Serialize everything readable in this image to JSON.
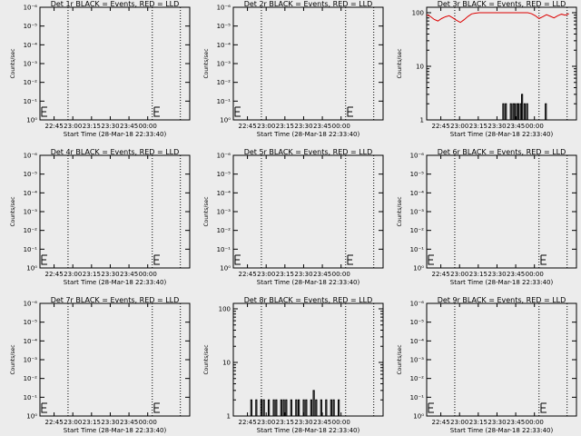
{
  "figure": {
    "background": "#ececec",
    "axis_color": "#000000",
    "events_color": "#000000",
    "lld_color": "#dd0000"
  },
  "chart_data": [
    {
      "type": "line",
      "title": "Det 1r BLACK = Events, RED = LLD",
      "xlabel": "Start Time (28-Mar-18 22:33:40)",
      "ylabel": "Counts/sec",
      "x_tick_labels": [
        "22:45",
        "23:00",
        "23:15",
        "23:30",
        "23:45",
        "00:00"
      ],
      "y_tick_labels": [
        "10⁰",
        "10⁻¹",
        "10⁻²",
        "10⁻³",
        "10⁻⁴",
        "10⁻⁵",
        "10⁻⁶"
      ],
      "yscale": "log",
      "dotted_lines_minutes": [
        22.5,
        90,
        112.5
      ],
      "series": [
        {
          "name": "Events",
          "color": "#000000",
          "x": [],
          "y": []
        },
        {
          "name": "LLD",
          "color": "#dd0000",
          "x": [],
          "y": []
        }
      ]
    },
    {
      "type": "line",
      "title": "Det 2r BLACK = Events, RED = LLD",
      "xlabel": "Start Time (28-Mar-18 22:33:40)",
      "ylabel": "Counts/sec",
      "x_tick_labels": [
        "22:45",
        "23:00",
        "23:15",
        "23:30",
        "23:45",
        "00:00"
      ],
      "y_tick_labels": [
        "10⁰",
        "10⁻¹",
        "10⁻²",
        "10⁻³",
        "10⁻⁴",
        "10⁻⁵",
        "10⁻⁶"
      ],
      "yscale": "log",
      "dotted_lines_minutes": [
        22.5,
        90,
        112.5
      ],
      "series": [
        {
          "name": "Events",
          "color": "#000000",
          "x": [],
          "y": []
        },
        {
          "name": "LLD",
          "color": "#dd0000",
          "x": [],
          "y": []
        }
      ]
    },
    {
      "type": "line",
      "title": "Det 3r BLACK = Events, RED = LLD",
      "xlabel": "Start Time (28-Mar-18 22:33:40)",
      "ylabel": "Counts/sec",
      "x_tick_labels": [
        "22:45",
        "23:00",
        "23:15",
        "23:30",
        "23:45",
        "00:00"
      ],
      "y_tick_labels": [
        "1",
        "10",
        "100"
      ],
      "yscale": "log",
      "ylim": [
        1,
        100
      ],
      "dotted_lines_minutes": [
        22.5,
        90,
        112.5
      ],
      "series": [
        {
          "name": "Events",
          "color": "#000000",
          "x": [
            60,
            61,
            62,
            63,
            66,
            67,
            68,
            69,
            70,
            71,
            72,
            73,
            75,
            76,
            77,
            78,
            79,
            80,
            81,
            82,
            95
          ],
          "y": [
            1,
            2,
            1,
            2,
            1,
            2,
            1,
            2,
            2,
            1,
            2,
            2,
            2,
            3,
            1,
            2,
            1,
            2,
            1,
            1,
            2
          ]
        },
        {
          "name": "LLD",
          "color": "#dd0000",
          "x": [
            0,
            3,
            6,
            9,
            12,
            15,
            18,
            21,
            24,
            27,
            30,
            33,
            36,
            39,
            42,
            45,
            48,
            51,
            54,
            57,
            60,
            63,
            66,
            69,
            72,
            75,
            78,
            81,
            84,
            87,
            90,
            93,
            96,
            99,
            102,
            105,
            108,
            111,
            114
          ],
          "y": [
            92,
            85,
            75,
            70,
            78,
            84,
            88,
            80,
            72,
            66,
            74,
            85,
            95,
            98,
            100,
            100,
            100,
            100,
            100,
            100,
            100,
            100,
            100,
            100,
            100,
            100,
            100,
            100,
            96,
            88,
            78,
            84,
            92,
            86,
            80,
            88,
            94,
            90,
            96
          ]
        }
      ]
    },
    {
      "type": "line",
      "title": "Det 4r BLACK = Events, RED = LLD",
      "xlabel": "Start Time (28-Mar-18 22:33:40)",
      "ylabel": "Counts/sec",
      "x_tick_labels": [
        "22:45",
        "23:00",
        "23:15",
        "23:30",
        "23:45",
        "00:00"
      ],
      "y_tick_labels": [
        "10⁰",
        "10⁻¹",
        "10⁻²",
        "10⁻³",
        "10⁻⁴",
        "10⁻⁵",
        "10⁻⁶"
      ],
      "yscale": "log",
      "dotted_lines_minutes": [
        22.5,
        90,
        112.5
      ],
      "series": [
        {
          "name": "Events",
          "color": "#000000",
          "x": [],
          "y": []
        },
        {
          "name": "LLD",
          "color": "#dd0000",
          "x": [],
          "y": []
        }
      ]
    },
    {
      "type": "line",
      "title": "Det 5r BLACK = Events, RED = LLD",
      "xlabel": "Start Time (28-Mar-18 22:33:40)",
      "ylabel": "Counts/sec",
      "x_tick_labels": [
        "22:45",
        "23:00",
        "23:15",
        "23:30",
        "23:45",
        "00:00"
      ],
      "y_tick_labels": [
        "10⁰",
        "10⁻¹",
        "10⁻²",
        "10⁻³",
        "10⁻⁴",
        "10⁻⁵",
        "10⁻⁶"
      ],
      "yscale": "log",
      "dotted_lines_minutes": [
        22.5,
        90,
        112.5
      ],
      "series": [
        {
          "name": "Events",
          "color": "#000000",
          "x": [],
          "y": []
        },
        {
          "name": "LLD",
          "color": "#dd0000",
          "x": [],
          "y": []
        }
      ]
    },
    {
      "type": "line",
      "title": "Det 6r BLACK = Events, RED = LLD",
      "xlabel": "Start Time (28-Mar-18 22:33:40)",
      "ylabel": "Counts/sec",
      "x_tick_labels": [
        "22:45",
        "23:00",
        "23:15",
        "23:30",
        "23:45",
        "00:00"
      ],
      "y_tick_labels": [
        "10⁰",
        "10⁻¹",
        "10⁻²",
        "10⁻³",
        "10⁻⁴",
        "10⁻⁵",
        "10⁻⁶"
      ],
      "yscale": "log",
      "dotted_lines_minutes": [
        22.5,
        90,
        112.5
      ],
      "series": [
        {
          "name": "Events",
          "color": "#000000",
          "x": [],
          "y": []
        },
        {
          "name": "LLD",
          "color": "#dd0000",
          "x": [],
          "y": []
        }
      ]
    },
    {
      "type": "line",
      "title": "Det 7r BLACK = Events, RED = LLD",
      "xlabel": "Start Time (28-Mar-18 22:33:40)",
      "ylabel": "Counts/sec",
      "x_tick_labels": [
        "22:45",
        "23:00",
        "23:15",
        "23:30",
        "23:45",
        "00:00"
      ],
      "y_tick_labels": [
        "10⁰",
        "10⁻¹",
        "10⁻²",
        "10⁻³",
        "10⁻⁴",
        "10⁻⁵",
        "10⁻⁶"
      ],
      "yscale": "log",
      "dotted_lines_minutes": [
        22.5,
        90,
        112.5
      ],
      "series": [
        {
          "name": "Events",
          "color": "#000000",
          "x": [],
          "y": []
        },
        {
          "name": "LLD",
          "color": "#dd0000",
          "x": [],
          "y": []
        }
      ]
    },
    {
      "type": "line",
      "title": "Det 8r BLACK = Events, RED = LLD",
      "xlabel": "Start Time (28-Mar-18 22:33:40)",
      "ylabel": "Counts/sec",
      "x_tick_labels": [
        "22:45",
        "23:00",
        "23:15",
        "23:30",
        "23:45",
        "00:00"
      ],
      "y_tick_labels": [
        "1",
        "10",
        "100"
      ],
      "yscale": "log",
      "ylim": [
        1,
        100
      ],
      "dotted_lines_minutes": [
        22.5,
        90,
        112.5
      ],
      "series": [
        {
          "name": "Events",
          "color": "#000000",
          "x": [
            14,
            16,
            18,
            20,
            22,
            24,
            26,
            28,
            30,
            32,
            34,
            36,
            38,
            40,
            42,
            44,
            46,
            48,
            50,
            52,
            54,
            56,
            58,
            60,
            62,
            64,
            66,
            68,
            70,
            72,
            74,
            76,
            78,
            80,
            82,
            84,
            86
          ],
          "y": [
            2,
            1,
            2,
            1,
            2,
            2,
            1,
            2,
            1,
            2,
            2,
            1,
            2,
            2,
            2,
            1,
            2,
            1,
            2,
            2,
            1,
            2,
            2,
            1,
            2,
            3,
            2,
            1,
            2,
            1,
            2,
            1,
            2,
            2,
            1,
            2,
            1
          ]
        },
        {
          "name": "LLD",
          "color": "#dd0000",
          "x": [],
          "y": []
        }
      ]
    },
    {
      "type": "line",
      "title": "Det 9r BLACK = Events, RED = LLD",
      "xlabel": "Start Time (28-Mar-18 22:33:40)",
      "ylabel": "Counts/sec",
      "x_tick_labels": [
        "22:45",
        "23:00",
        "23:15",
        "23:30",
        "23:45",
        "00:00"
      ],
      "y_tick_labels": [
        "10⁰",
        "10⁻¹",
        "10⁻²",
        "10⁻³",
        "10⁻⁴",
        "10⁻⁵",
        "10⁻⁶"
      ],
      "yscale": "log",
      "dotted_lines_minutes": [
        22.5,
        90,
        112.5
      ],
      "series": [
        {
          "name": "Events",
          "color": "#000000",
          "x": [],
          "y": []
        },
        {
          "name": "LLD",
          "color": "#dd0000",
          "x": [],
          "y": []
        }
      ]
    }
  ]
}
